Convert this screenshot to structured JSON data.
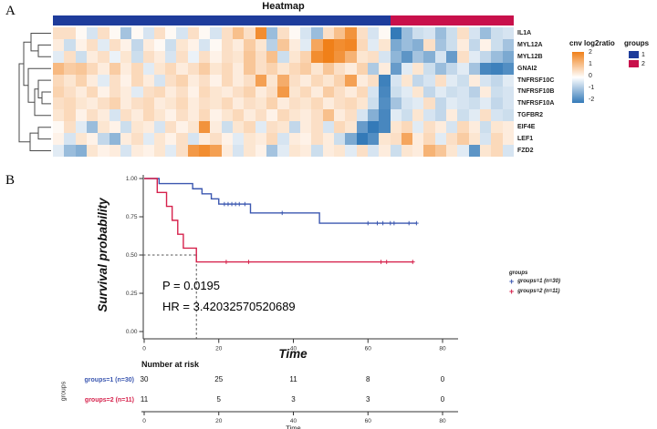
{
  "panels": {
    "a_label": "A",
    "b_label": "B"
  },
  "chart_data": [
    {
      "type": "heatmap",
      "title": "Heatmap",
      "rows": [
        "IL1A",
        "MYL12A",
        "MYL12B",
        "GNAI2",
        "TNFRSF10C",
        "TNFRSF10B",
        "TNFRSF10A",
        "TGFBR2",
        "EIF4E",
        "LEF1",
        "FZD2"
      ],
      "n_columns": 41,
      "group_sizes": {
        "1": 30,
        "2": 11
      },
      "legend_groups": {
        "title": "groups",
        "items": [
          {
            "label": "1",
            "color": "#1E3C9B"
          },
          {
            "label": "2",
            "color": "#C8104B"
          }
        ]
      },
      "colorscale": {
        "label": "cnv log2ratio",
        "min": -2,
        "max": 2,
        "ticks": [
          "2",
          "1",
          "0",
          "-1",
          "-2"
        ],
        "max_color": "#F08019",
        "mid_color": "#FFFFFF",
        "min_color": "#347AB8"
      },
      "values": [
        [
          0.5,
          0.5,
          0.1,
          -0.4,
          0.5,
          0.1,
          -0.9,
          0.1,
          -0.4,
          0.5,
          0.1,
          -0.4,
          0.5,
          0.1,
          -0.4,
          0.5,
          1.0,
          0.5,
          1.8,
          -1.0,
          0.5,
          0.1,
          -0.4,
          -1.0,
          0.5,
          1.0,
          1.7,
          0.5,
          -0.4,
          0.1,
          -2.0,
          -1.0,
          -0.5,
          -0.4,
          -1.0,
          -0.5,
          0.5,
          -0.4,
          -1.0,
          -0.5,
          -0.4
        ],
        [
          0.3,
          -0.5,
          0.2,
          0.5,
          -0.3,
          0.5,
          0.2,
          -0.6,
          0.3,
          0.1,
          -0.5,
          0.4,
          0.2,
          -0.4,
          0.1,
          0.5,
          0.3,
          0.8,
          0.4,
          -0.7,
          0.9,
          0.3,
          -0.3,
          1.4,
          2.0,
          1.8,
          1.9,
          0.6,
          -0.3,
          0.4,
          -1.3,
          -1.0,
          -1.2,
          0.5,
          -0.9,
          -0.5,
          0.3,
          -0.6,
          0.2,
          -0.5,
          -0.9
        ],
        [
          -0.3,
          0.5,
          -0.5,
          0.3,
          0.5,
          -0.2,
          0.4,
          -0.5,
          0.5,
          0.3,
          -0.4,
          0.5,
          -0.2,
          0.5,
          0.2,
          0.5,
          0.4,
          0.9,
          0.5,
          1.0,
          -0.5,
          0.4,
          0.7,
          1.8,
          2.0,
          1.7,
          1.2,
          0.4,
          0.5,
          -0.4,
          -1.1,
          -1.6,
          -0.9,
          -1.2,
          -0.4,
          -1.5,
          0.5,
          -0.3,
          -0.6,
          -1.0,
          -1.3
        ],
        [
          1.1,
          0.8,
          0.9,
          0.6,
          0.3,
          0.8,
          0.3,
          0.6,
          -0.3,
          0.4,
          0.6,
          0.3,
          0.5,
          0.8,
          0.4,
          0.6,
          0.3,
          0.9,
          0.5,
          0.7,
          0.4,
          0.6,
          0.8,
          0.4,
          0.9,
          0.5,
          0.3,
          0.7,
          -0.8,
          0.3,
          -1.5,
          -0.3,
          0.4,
          -0.5,
          -1.0,
          -0.6,
          -0.3,
          -0.9,
          -1.8,
          -1.9,
          -1.7
        ],
        [
          0.6,
          0.4,
          0.7,
          0.3,
          -0.3,
          0.5,
          0.2,
          0.6,
          0.3,
          -0.4,
          0.5,
          0.7,
          0.3,
          0.5,
          0.2,
          0.6,
          0.3,
          0.5,
          1.5,
          0.4,
          1.3,
          0.5,
          0.3,
          0.6,
          0.4,
          0.7,
          1.5,
          0.3,
          0.5,
          -1.9,
          -0.4,
          0.4,
          -0.6,
          -0.4,
          0.5,
          -0.3,
          -0.5,
          0.3,
          -0.4,
          -0.6,
          -0.3
        ],
        [
          0.7,
          0.5,
          0.3,
          0.6,
          0.2,
          0.5,
          0.3,
          -0.3,
          0.5,
          0.6,
          0.3,
          0.5,
          0.2,
          0.6,
          0.4,
          0.3,
          0.5,
          0.7,
          0.3,
          0.5,
          1.6,
          0.4,
          0.6,
          0.3,
          0.8,
          0.5,
          0.3,
          0.6,
          -0.4,
          -1.8,
          -0.5,
          -0.3,
          0.4,
          -0.6,
          -0.3,
          -0.5,
          -0.4,
          -0.7,
          0.3,
          -0.5,
          -0.4
        ],
        [
          0.5,
          0.6,
          0.4,
          0.3,
          0.5,
          0.7,
          0.3,
          0.5,
          0.6,
          0.3,
          0.4,
          0.6,
          0.3,
          0.5,
          0.4,
          0.6,
          0.3,
          0.5,
          0.4,
          0.7,
          0.3,
          0.5,
          0.4,
          0.6,
          0.3,
          0.5,
          0.6,
          0.4,
          -0.5,
          -1.7,
          -0.9,
          -0.4,
          -0.3,
          0.5,
          -0.6,
          -0.3,
          -0.4,
          -0.5,
          -0.3,
          -0.6,
          -0.4
        ],
        [
          0.4,
          0.6,
          0.2,
          0.5,
          0.3,
          -0.4,
          0.5,
          0.3,
          0.6,
          0.4,
          0.2,
          0.5,
          0.3,
          0.6,
          0.2,
          0.4,
          0.6,
          0.3,
          0.5,
          0.2,
          0.6,
          0.4,
          0.3,
          0.5,
          1.0,
          0.3,
          0.5,
          -0.4,
          -1.2,
          -1.8,
          -0.3,
          -0.5,
          0.4,
          -0.4,
          -0.6,
          0.3,
          -0.5,
          -0.3,
          0.5,
          -0.4,
          -0.5
        ],
        [
          0.1,
          0.5,
          -0.3,
          -1.0,
          0.4,
          0.2,
          -0.5,
          0.4,
          0.3,
          -0.4,
          0.5,
          0.2,
          0.4,
          1.7,
          0.3,
          -0.5,
          0.4,
          0.6,
          -0.3,
          0.5,
          0.4,
          -0.6,
          0.3,
          0.5,
          -0.4,
          0.6,
          0.4,
          -1.5,
          -2.0,
          -1.8,
          0.4,
          0.6,
          -0.3,
          0.5,
          0.3,
          -0.4,
          0.6,
          0.3,
          -0.5,
          0.4,
          0.3
        ],
        [
          0.2,
          -0.4,
          0.4,
          0.2,
          -0.6,
          -1.1,
          0.3,
          0.5,
          -0.3,
          0.4,
          0.2,
          0.5,
          -0.4,
          0.3,
          0.5,
          0.2,
          -0.3,
          0.4,
          0.3,
          0.6,
          -0.4,
          0.3,
          0.2,
          0.5,
          0.3,
          -0.5,
          -1.3,
          -2.0,
          -1.7,
          0.4,
          0.5,
          1.4,
          0.3,
          0.6,
          -0.3,
          0.5,
          0.8,
          0.4,
          -0.4,
          0.6,
          0.3
        ],
        [
          -0.3,
          -1.0,
          -1.2,
          0.4,
          0.2,
          0.3,
          -0.4,
          0.3,
          0.2,
          0.4,
          -0.3,
          0.5,
          1.6,
          1.8,
          1.5,
          0.3,
          -0.4,
          0.4,
          0.2,
          -0.9,
          -0.3,
          0.4,
          0.3,
          -0.5,
          0.3,
          0.4,
          -0.3,
          0.5,
          -0.4,
          0.3,
          -0.5,
          0.4,
          0.3,
          1.2,
          0.9,
          0.4,
          -0.3,
          -1.6,
          0.4,
          0.6,
          -0.4
        ]
      ]
    },
    {
      "type": "line",
      "subtype": "kaplan-meier",
      "xlabel": "Time",
      "ylabel": "Survival probability",
      "xlim": [
        0,
        80
      ],
      "xticks": [
        0,
        20,
        40,
        60,
        80
      ],
      "ylim": [
        0,
        1
      ],
      "yticks": [
        "0.00",
        "0.25",
        "0.50",
        "0.75",
        "1.00"
      ],
      "annotations": [
        "P = 0.0195",
        "HR = 3.42032570520689"
      ],
      "median": {
        "time": 14,
        "prob": 0.5
      },
      "legend": {
        "title": "groups"
      },
      "series": [
        {
          "name": "groups=1 (n=30)",
          "color": "#3B57B0",
          "steps": [
            [
              0,
              1.0
            ],
            [
              4,
              0.967
            ],
            [
              13,
              0.933
            ],
            [
              15.5,
              0.9
            ],
            [
              18,
              0.867
            ],
            [
              20,
              0.833
            ],
            [
              28.5,
              0.775
            ],
            [
              47,
              0.708
            ],
            [
              73,
              0.708
            ]
          ],
          "censors": [
            [
              21.5,
              0.833
            ],
            [
              22.5,
              0.833
            ],
            [
              23.5,
              0.833
            ],
            [
              24.5,
              0.833
            ],
            [
              25.5,
              0.833
            ],
            [
              27,
              0.833
            ],
            [
              37,
              0.775
            ],
            [
              60,
              0.708
            ],
            [
              62.5,
              0.708
            ],
            [
              64,
              0.708
            ],
            [
              66,
              0.708
            ],
            [
              67,
              0.708
            ],
            [
              71,
              0.708
            ],
            [
              73,
              0.708
            ]
          ]
        },
        {
          "name": "groups=2 (n=11)",
          "color": "#D6224C",
          "steps": [
            [
              0,
              1.0
            ],
            [
              3.5,
              0.909
            ],
            [
              6,
              0.818
            ],
            [
              7.5,
              0.727
            ],
            [
              9,
              0.636
            ],
            [
              10.5,
              0.545
            ],
            [
              14,
              0.455
            ],
            [
              72,
              0.455
            ]
          ],
          "censors": [
            [
              22,
              0.455
            ],
            [
              28,
              0.455
            ],
            [
              63.5,
              0.455
            ],
            [
              65,
              0.455
            ],
            [
              72,
              0.455
            ]
          ]
        }
      ]
    },
    {
      "type": "table",
      "title": "Number at risk",
      "row_group_label": "groups",
      "xlabel": "Time",
      "xticks": [
        0,
        20,
        40,
        60,
        80
      ],
      "rows": [
        {
          "label": "groups=1 (n=30)",
          "color": "#3B57B0",
          "values": [
            "30",
            "25",
            "11",
            "8",
            "0"
          ]
        },
        {
          "label": "groups=2 (n=11)",
          "color": "#D6224C",
          "values": [
            "11",
            "5",
            "3",
            "3",
            "0"
          ]
        }
      ]
    }
  ]
}
